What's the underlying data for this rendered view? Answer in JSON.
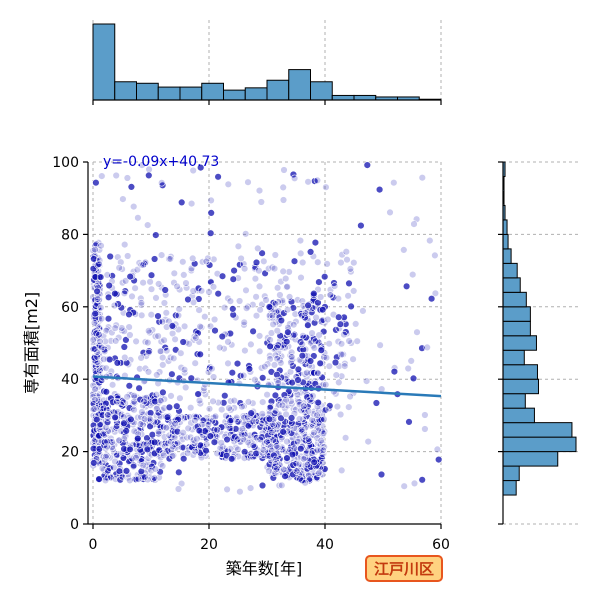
{
  "chart_data": {
    "type": "scatter",
    "xlabel": "築年数[年]",
    "ylabel": "専有面積[m2]",
    "xlim": [
      0,
      60
    ],
    "ylim": [
      0,
      100
    ],
    "x_ticks": [
      0,
      20,
      40,
      60
    ],
    "y_ticks": [
      0,
      20,
      40,
      60,
      80,
      100
    ],
    "grid": true,
    "regression": {
      "equation": "y=-0.09x+40.73",
      "slope": -0.09,
      "intercept": 40.73,
      "color": "#2a7ab8"
    },
    "point_color": "#1010b0",
    "scatter_clusters": [
      {
        "x": [
          0,
          1.2
        ],
        "y": [
          16,
          78
        ],
        "n": 260
      },
      {
        "x": [
          1,
          12
        ],
        "y": [
          12,
          36
        ],
        "n": 320
      },
      {
        "x": [
          12,
          32
        ],
        "y": [
          18,
          30
        ],
        "n": 300
      },
      {
        "x": [
          30,
          40
        ],
        "y": [
          12,
          28
        ],
        "n": 280
      },
      {
        "x": [
          30,
          40
        ],
        "y": [
          28,
          62
        ],
        "n": 200
      },
      {
        "x": [
          1,
          45
        ],
        "y": [
          30,
          75
        ],
        "n": 480
      },
      {
        "x": [
          0,
          60
        ],
        "y": [
          8,
          100
        ],
        "n": 180
      }
    ],
    "x_histogram": {
      "bin_edges": [
        0,
        3.75,
        7.5,
        11.25,
        15,
        18.75,
        22.5,
        26.25,
        30,
        33.75,
        37.5,
        41.25,
        45,
        48.75,
        52.5,
        56.25,
        60
      ],
      "counts": [
        100,
        24,
        22,
        17,
        17,
        22,
        13,
        16,
        26,
        40,
        24,
        6,
        6,
        4,
        4,
        1
      ],
      "color": "#5b9dc9"
    },
    "y_histogram": {
      "bin_edges": [
        8,
        12,
        16,
        20,
        24,
        28,
        32,
        36,
        40,
        44,
        48,
        52,
        56,
        60,
        64,
        68,
        72,
        76,
        80,
        84,
        88,
        92,
        96,
        100
      ],
      "counts": [
        13,
        16,
        54,
        72,
        68,
        31,
        22,
        35,
        34,
        21,
        33,
        27,
        27,
        23,
        17,
        14,
        8,
        5,
        4,
        2,
        1,
        1,
        2
      ],
      "color": "#5b9dc9"
    }
  },
  "badge": {
    "label": "江戸川区"
  }
}
